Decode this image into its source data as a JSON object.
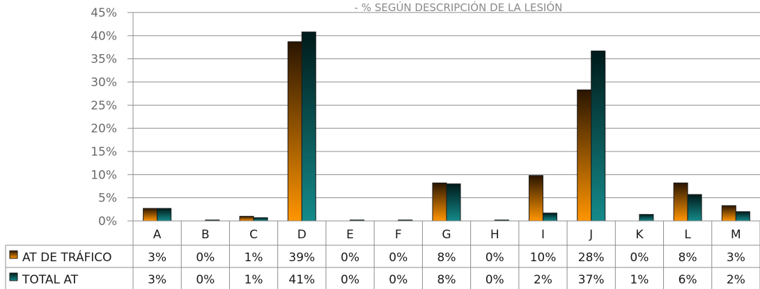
{
  "chart_data": {
    "type": "bar",
    "title": "- % SEGÚN DESCRIPCIÓN DE LA LESIÓN",
    "categories": [
      "A",
      "B",
      "C",
      "D",
      "E",
      "F",
      "G",
      "H",
      "I",
      "J",
      "K",
      "L",
      "M"
    ],
    "series": [
      {
        "name": "AT DE TRÁFICO",
        "color_top": "#2a1500",
        "color_bottom": "#ff9500",
        "values": [
          2.7,
          0.0,
          1.0,
          38.7,
          0.0,
          0.0,
          8.2,
          0.0,
          9.8,
          28.3,
          0.0,
          8.2,
          3.3
        ],
        "labels": [
          "3%",
          "0%",
          "1%",
          "39%",
          "0%",
          "0%",
          "8%",
          "0%",
          "10%",
          "28%",
          "0%",
          "8%",
          "3%"
        ]
      },
      {
        "name": "TOTAL AT",
        "color_top": "#001a1a",
        "color_bottom": "#158a8a",
        "values": [
          2.7,
          0.2,
          0.7,
          40.8,
          0.2,
          0.2,
          8.0,
          0.2,
          1.7,
          36.7,
          1.4,
          5.7,
          2.0
        ],
        "labels": [
          "3%",
          "0%",
          "1%",
          "41%",
          "0%",
          "0%",
          "8%",
          "0%",
          "2%",
          "37%",
          "1%",
          "6%",
          "2%"
        ]
      }
    ],
    "ylim": [
      0,
      45
    ],
    "yticks": [
      "0%",
      "5%",
      "10%",
      "15%",
      "20%",
      "25%",
      "30%",
      "35%",
      "40%",
      "45%"
    ],
    "grid": true,
    "legend": "data-table-left"
  }
}
